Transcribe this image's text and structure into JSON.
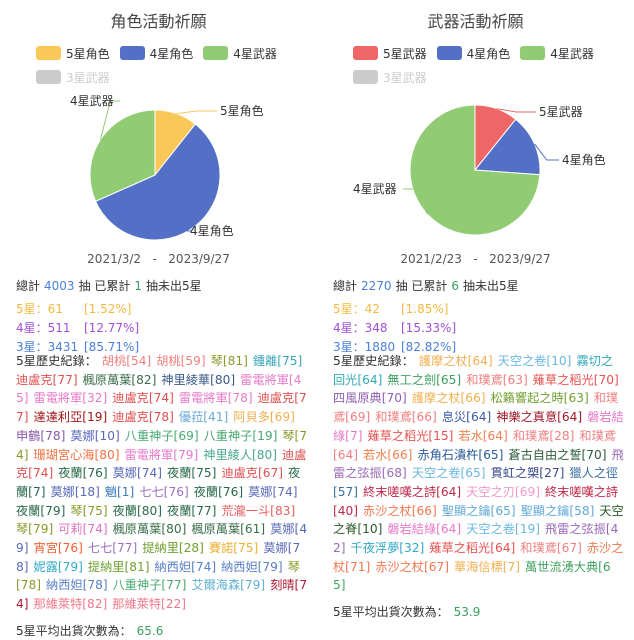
{
  "chart_data": [
    {
      "type": "pie",
      "title": "角色活動祈願",
      "legend": [
        {
          "name": "5星角色",
          "color": "#fac858"
        },
        {
          "name": "4星角色",
          "color": "#5470c6"
        },
        {
          "name": "4星武器",
          "color": "#91cc75"
        },
        {
          "name": "3星武器",
          "color": "#cccccc",
          "hidden": true
        }
      ],
      "series": [
        {
          "name": "5星角色",
          "value": 61,
          "color": "#fac858"
        },
        {
          "name": "4星角色",
          "value": 330,
          "color": "#5470c6"
        },
        {
          "name": "4星武器",
          "value": 181,
          "color": "#91cc75"
        }
      ],
      "date_range": [
        "2021/3/2",
        "2023/9/27"
      ],
      "summary": {
        "prefix": "總計",
        "total": "4003",
        "mid": "抽 已累計",
        "pity": "1",
        "suffix": "抽未出5星"
      },
      "stats": [
        {
          "label": "5星：61",
          "pct": "[1.52%]",
          "color": "#f5b942"
        },
        {
          "label": "4星：511",
          "pct": "[12.77%]",
          "color": "#a050d8"
        },
        {
          "label": "3星：3431",
          "pct": "[85.71%]",
          "color": "#4a80d8"
        }
      ],
      "history_label": "5星歷史紀錄：",
      "records": [
        [
          "胡桃[54]",
          "#f08080"
        ],
        [
          "胡桃[59]",
          "#f08080"
        ],
        [
          "琴[81]",
          "#8a9a2a"
        ],
        [
          "鍾離[75]",
          "#3aa6b9"
        ],
        [
          "迪盧克[77]",
          "#e05050"
        ],
        [
          "楓原萬葉[82]",
          "#3b6e4a"
        ],
        [
          "神里綾華[80]",
          "#3a5a8a"
        ],
        [
          "雷電將軍[45]",
          "#e87ac8"
        ],
        [
          "雷電將軍[32]",
          "#e87ac8"
        ],
        [
          "迪盧克[74]",
          "#e05050"
        ],
        [
          "雷電將軍[78]",
          "#e87ac8"
        ],
        [
          "迪盧克[77]",
          "#e05050"
        ],
        [
          "達達利亞[19]",
          "#a01818"
        ],
        [
          "迪盧克[78]",
          "#e05050"
        ],
        [
          "優菈[41]",
          "#6aaad8"
        ],
        [
          "阿貝多[69]",
          "#f0b050"
        ],
        [
          "申鶴[78]",
          "#8a5aa8"
        ],
        [
          "莫娜[10]",
          "#5a6ab8"
        ],
        [
          "八重神子[69]",
          "#4aa870"
        ],
        [
          "八重神子[19]",
          "#4aa870"
        ],
        [
          "琴[74]",
          "#8a9a2a"
        ],
        [
          "珊瑚宮心海[80]",
          "#f07040"
        ],
        [
          "雷電將軍[79]",
          "#e87ac8"
        ],
        [
          "神里綾人[80]",
          "#4aa890"
        ],
        [
          "迪盧克[74]",
          "#e05050"
        ],
        [
          "夜蘭[76]",
          "#2a6a4a"
        ],
        [
          "莫娜[74]",
          "#5a6ab8"
        ],
        [
          "夜蘭[75]",
          "#2a6a4a"
        ],
        [
          "迪盧克[67]",
          "#e05050"
        ],
        [
          "夜蘭[7]",
          "#2a6a4a"
        ],
        [
          "莫娜[18]",
          "#5a6ab8"
        ],
        [
          "魈[1]",
          "#3a7ab8"
        ],
        [
          "七七[76]",
          "#a070c0"
        ],
        [
          "夜蘭[76]",
          "#2a6a4a"
        ],
        [
          "莫娜[74]",
          "#5a6ab8"
        ],
        [
          "夜蘭[79]",
          "#2a6a4a"
        ],
        [
          "琴[75]",
          "#8a9a2a"
        ],
        [
          "夜蘭[80]",
          "#2a6a4a"
        ],
        [
          "夜蘭[77]",
          "#2a6a4a"
        ],
        [
          "荒瀧一斗[83]",
          "#e86060"
        ],
        [
          "琴[79]",
          "#8a9a2a"
        ],
        [
          "可莉[74]",
          "#e070c0"
        ],
        [
          "楓原萬葉[80]",
          "#3b6e4a"
        ],
        [
          "楓原萬葉[61]",
          "#3b6e4a"
        ],
        [
          "莫娜[49]",
          "#5a6ab8"
        ],
        [
          "宵宮[76]",
          "#f06030"
        ],
        [
          "七七[77]",
          "#a070c0"
        ],
        [
          "提納里[28]",
          "#70a030"
        ],
        [
          "賽諾[75]",
          "#f0b030"
        ],
        [
          "莫娜[78]",
          "#5a6ab8"
        ],
        [
          "妮露[79]",
          "#30a8c8"
        ],
        [
          "提納里[81]",
          "#70a030"
        ],
        [
          "納西妲[74]",
          "#5a80c8"
        ],
        [
          "納西妲[79]",
          "#5a80c8"
        ],
        [
          "琴[78]",
          "#8a9a2a"
        ],
        [
          "納西妲[78]",
          "#5a80c8"
        ],
        [
          "八重神子[77]",
          "#4aa870"
        ],
        [
          "艾爾海森[79]",
          "#60b0d0"
        ],
        [
          "刻晴[74]",
          "#b01830"
        ],
        [
          "那維萊特[82]",
          "#f07888"
        ],
        [
          "那維萊特[22]",
          "#f07888"
        ]
      ],
      "avg_label": "5星平均出貨次數為：",
      "avg": "65.6"
    },
    {
      "type": "pie",
      "title": "武器活動祈願",
      "legend": [
        {
          "name": "5星武器",
          "color": "#ee6666"
        },
        {
          "name": "4星角色",
          "color": "#5470c6"
        },
        {
          "name": "4星武器",
          "color": "#91cc75"
        },
        {
          "name": "3星武器",
          "color": "#cccccc",
          "hidden": true
        }
      ],
      "series": [
        {
          "name": "5星武器",
          "value": 42,
          "color": "#ee6666"
        },
        {
          "name": "4星角色",
          "value": 60,
          "color": "#5470c6"
        },
        {
          "name": "4星武器",
          "value": 288,
          "color": "#91cc75"
        }
      ],
      "date_range": [
        "2021/2/23",
        "2023/9/27"
      ],
      "summary": {
        "prefix": "總計",
        "total": "2270",
        "mid": "抽 已累計",
        "pity": "6",
        "suffix": "抽未出5星"
      },
      "stats": [
        {
          "label": "5星：42",
          "pct": "[1.85%]",
          "color": "#f5b942"
        },
        {
          "label": "4星：348",
          "pct": "[15.33%]",
          "color": "#a050d8"
        },
        {
          "label": "3星：1880",
          "pct": "[82.82%]",
          "color": "#4a80d8"
        }
      ],
      "history_label": "5星歷史紀錄：",
      "records": [
        [
          "護摩之杖[64]",
          "#f0b050"
        ],
        [
          "天空之卷[10]",
          "#6ab8e0"
        ],
        [
          "霧切之回光[64]",
          "#30a8b8"
        ],
        [
          "無工之劍[65]",
          "#40a060"
        ],
        [
          "和璞鳶[63]",
          "#f08080"
        ],
        [
          "薙草之稻光[70]",
          "#e85050"
        ],
        [
          "四風原典[70]",
          "#9060b0"
        ],
        [
          "護摩之杖[66]",
          "#f0b050"
        ],
        [
          "松籟響起之時[63]",
          "#70a030"
        ],
        [
          "和璞鳶[69]",
          "#f08080"
        ],
        [
          "和璞鳶[66]",
          "#f08080"
        ],
        [
          "息災[64]",
          "#3a5aa8"
        ],
        [
          "神樂之真意[64]",
          "#a01828"
        ],
        [
          "磐岩結綠[7]",
          "#e878c8"
        ],
        [
          "薙草之稻光[15]",
          "#e85050"
        ],
        [
          "若水[64]",
          "#f08050"
        ],
        [
          "和璞鳶[28]",
          "#f08080"
        ],
        [
          "和璞鳶[64]",
          "#f08080"
        ],
        [
          "若水[66]",
          "#f08050"
        ],
        [
          "赤角石潰杵[65]",
          "#2a5a9a"
        ],
        [
          "蒼古自由之誓[70]",
          "#2a5a3a"
        ],
        [
          "飛雷之弦振[68]",
          "#9a6ab8"
        ],
        [
          "天空之卷[65]",
          "#6ab8e0"
        ],
        [
          "貫虹之槊[27]",
          "#3a4a8a"
        ],
        [
          "獵人之徑[57]",
          "#3a70a0"
        ],
        [
          "終末嗟嘆之詩[64]",
          "#c02848"
        ],
        [
          "天空之刃[69]",
          "#f098c8"
        ],
        [
          "終末嗟嘆之詩[40]",
          "#c02848"
        ],
        [
          "赤沙之杖[66]",
          "#f07850"
        ],
        [
          "聖顯之鑰[65]",
          "#60a8d8"
        ],
        [
          "聖顯之鑰[58]",
          "#60a8d8"
        ],
        [
          "天空之脊[10]",
          "#2a5a2a"
        ],
        [
          "磐岩結綠[64]",
          "#e878c8"
        ],
        [
          "天空之卷[19]",
          "#6ab8e0"
        ],
        [
          "飛雷之弦振[42]",
          "#9a6ab8"
        ],
        [
          "千夜浮夢[32]",
          "#30a8c8"
        ],
        [
          "薙草之稻光[64]",
          "#e85050"
        ],
        [
          "和璞鳶[67]",
          "#f08080"
        ],
        [
          "赤沙之杖[71]",
          "#f07850"
        ],
        [
          "赤沙之杖[67]",
          "#f07850"
        ],
        [
          "華海信標[7]",
          "#f0b050"
        ],
        [
          "萬世流湧大典[65]",
          "#40a060"
        ]
      ],
      "avg_label": "5星平均出貨次數為：",
      "avg": "53.9"
    }
  ]
}
